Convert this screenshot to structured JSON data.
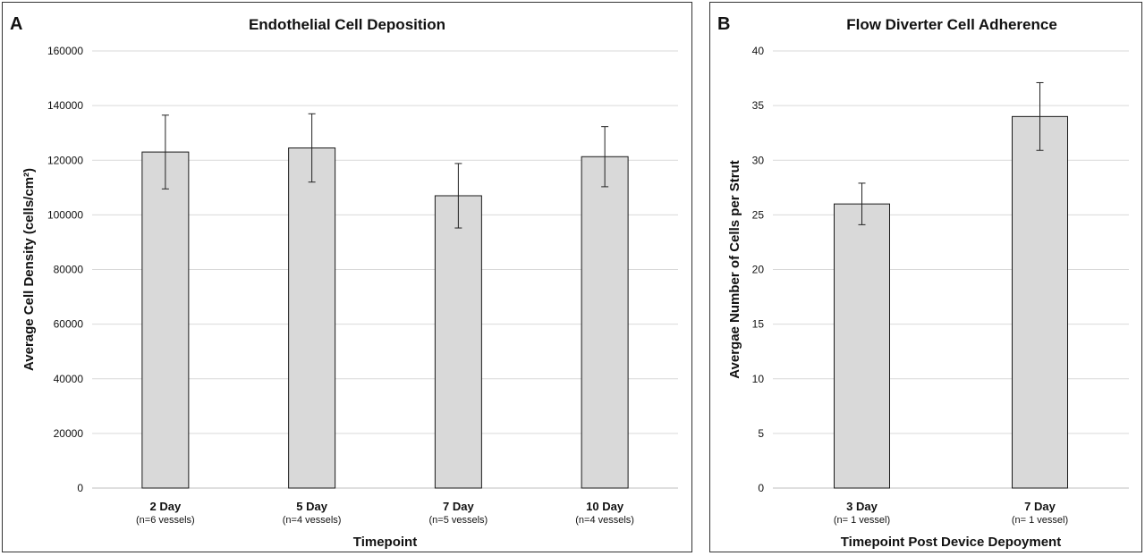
{
  "chart_data": [
    {
      "type": "bar",
      "panel_label": "A",
      "title": "Endothelial Cell Deposition",
      "xlabel": "Timepoint",
      "ylabel": "Average Cell Density (cells/cm²)",
      "ylim": [
        0,
        160000
      ],
      "yticks": [
        0,
        20000,
        40000,
        60000,
        80000,
        100000,
        120000,
        140000,
        160000
      ],
      "ytick_labels": [
        "0",
        "20000",
        "40000",
        "60000",
        "80000",
        "100000",
        "120000",
        "140000",
        "160000"
      ],
      "grid": true,
      "categories": [
        "2 Day",
        "5 Day",
        "7 Day",
        "10 Day"
      ],
      "sublabels": [
        "(n=6 vessels)",
        "(n=4 vessels)",
        "(n=5 vessels)",
        "(n=4 vessels)"
      ],
      "values": [
        123000,
        124500,
        107000,
        121300
      ],
      "errors": [
        13500,
        12500,
        11800,
        11000
      ],
      "bar_color": "#d9d9d9",
      "edge_color": "#1a1a1a"
    },
    {
      "type": "bar",
      "panel_label": "B",
      "title": "Flow Diverter Cell Adherence",
      "xlabel": "Timepoint Post Device Depoyment",
      "ylabel": "Avergae Number of Cells per Strut",
      "ylim": [
        0,
        40
      ],
      "yticks": [
        0,
        5,
        10,
        15,
        20,
        25,
        30,
        35,
        40
      ],
      "ytick_labels": [
        "0",
        "5",
        "10",
        "15",
        "20",
        "25",
        "30",
        "35",
        "40"
      ],
      "grid": true,
      "categories": [
        "3 Day",
        "7 Day"
      ],
      "sublabels": [
        "(n= 1 vessel)",
        "(n= 1 vessel)"
      ],
      "values": [
        26,
        34
      ],
      "errors": [
        1.9,
        3.1
      ],
      "bar_color": "#d9d9d9",
      "edge_color": "#1a1a1a"
    }
  ]
}
